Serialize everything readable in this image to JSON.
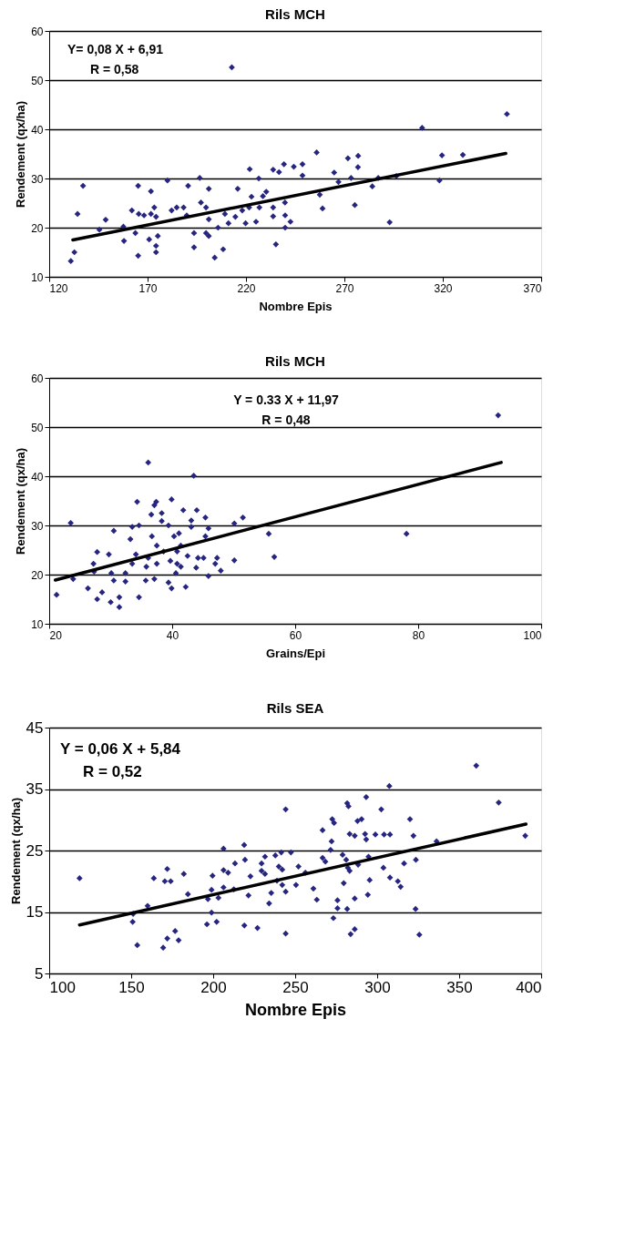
{
  "chart_data": [
    {
      "type": "scatter",
      "title": "Rils MCH",
      "xlabel": "Nombre Epis",
      "ylabel": "Rendement (qx/ha)",
      "xlim": [
        120,
        370
      ],
      "xticks": [
        120,
        170,
        220,
        270,
        320,
        370
      ],
      "ylim": [
        10,
        60
      ],
      "yticks": [
        10,
        20,
        30,
        40,
        50,
        60
      ],
      "grid": "y",
      "annotations": [
        "Y= 0,08 X + 6,91",
        "R = 0,58"
      ],
      "series": [
        {
          "color": "#262680",
          "marker": "diamond",
          "x": [
            212.8,
            352.6,
            309.5,
            255.9,
            271.8,
            277,
            276.9,
            319.6,
            330.2,
            318.3,
            296.4,
            287.2,
            284.2,
            264.8,
            267,
            273.4,
            257.5,
            258.9,
            275.3,
            293,
            248.7,
            244.3,
            239.3,
            248.7,
            233.8,
            236.8,
            221.9,
            226.5,
            215.8,
            222.8,
            228.6,
            230.3,
            239.8,
            233.8,
            233.8,
            239.9,
            242.6,
            239.9,
            235.2,
            218.1,
            214.6,
            219.8,
            225.1,
            226.8,
            221.6,
            211.1,
            209.3,
            201.1,
            196.5,
            190.6,
            180.1,
            197.1,
            199.7,
            201.1,
            205.8,
            193.6,
            199.7,
            201.1,
            193.6,
            208.4,
            204.1,
            184.8,
            188.3,
            182.2,
            189.9,
            173.4,
            174.3,
            171.7,
            165.2,
            171.7,
            162,
            165.5,
            168.2,
            157.7,
            163.8,
            170.8,
            175.2,
            174.3,
            174.3,
            165.2,
            158,
            145.5,
            148.7,
            134.4,
            137.2,
            132.8,
            131
          ],
          "values": [
            52.6,
            43.1,
            40.3,
            35.3,
            34.1,
            34.6,
            32.3,
            34.7,
            34.8,
            29.6,
            30.5,
            30.1,
            28.4,
            31.2,
            29.3,
            30.1,
            26.7,
            23.9,
            24.6,
            21.1,
            32.9,
            32.4,
            32.9,
            30.6,
            31.8,
            31.3,
            31.9,
            30,
            27.9,
            26.3,
            26.4,
            27.3,
            25.1,
            24.1,
            22.3,
            22.5,
            21.2,
            20,
            16.6,
            23.5,
            22.2,
            20.9,
            21.2,
            24.1,
            24.1,
            20.9,
            22.8,
            27.9,
            30.1,
            28.5,
            29.6,
            25.1,
            24.1,
            21.7,
            20,
            18.9,
            18.9,
            18.3,
            16,
            15.6,
            13.9,
            24.1,
            24.1,
            23.5,
            22.5,
            24.1,
            22.2,
            22.8,
            28.5,
            27.4,
            23.5,
            22.8,
            22.5,
            20.2,
            18.9,
            17.6,
            18.3,
            16.3,
            15,
            14.3,
            17.3,
            19.6,
            21.6,
            22.8,
            28.5,
            15,
            13.2
          ]
        },
        {
          "type": "line",
          "color": "#000000",
          "line_style": "solid",
          "x": [
            132,
            352
          ],
          "values": [
            17.5,
            35.1
          ]
        }
      ]
    },
    {
      "type": "scatter",
      "title": "Rils MCH",
      "xlabel": "Grains/Epi",
      "ylabel": "Rendement  (qx/ha)",
      "xlim": [
        20,
        100
      ],
      "xticks": [
        20,
        40,
        60,
        80,
        100
      ],
      "ylim": [
        10,
        60
      ],
      "yticks": [
        10,
        20,
        30,
        40,
        50,
        60
      ],
      "grid": "y",
      "annotations": [
        "Y = 0.33 X + 11,97",
        "R  = 0,48"
      ],
      "series": [
        {
          "color": "#262680",
          "marker": "diamond",
          "x": [
            93,
            36.1,
            43.5,
            34.3,
            37.4,
            37.1,
            39.9,
            41.8,
            44,
            36.6,
            38.3,
            38.3,
            45.4,
            51.5,
            50.1,
            43.1,
            43.1,
            45.9,
            39.4,
            33.5,
            34.6,
            23.5,
            30.5,
            33.2,
            36.7,
            40.3,
            41.1,
            45.4,
            55.7,
            78.1,
            56.6,
            50.1,
            47.3,
            47,
            47.9,
            45.9,
            44.2,
            45.1,
            43.9,
            42.5,
            37.5,
            38.6,
            40.8,
            41.4,
            39.7,
            40.8,
            41.4,
            40.6,
            36.1,
            35.8,
            37.5,
            34.1,
            33.5,
            32.4,
            35.7,
            37.1,
            32.4,
            30.5,
            30.1,
            27.8,
            29.7,
            27.2,
            27.3,
            23.9,
            26.3,
            28.6,
            27.8,
            30,
            31.4,
            31.4,
            34.6,
            39.4,
            39.9,
            42.2,
            21.2
          ],
          "values": [
            52.4,
            42.8,
            40.1,
            34.8,
            34.8,
            34.1,
            35.3,
            33.1,
            33.1,
            32.2,
            32.5,
            30.9,
            31.6,
            31.6,
            30.4,
            31,
            29.7,
            29.4,
            30,
            29.7,
            30,
            30.5,
            28.9,
            27.2,
            27.8,
            27.8,
            28.4,
            27.8,
            28.3,
            28.3,
            23.6,
            22.9,
            23.4,
            22.2,
            20.8,
            19.7,
            23.4,
            23.4,
            21.4,
            23.8,
            25.9,
            24.7,
            24.7,
            25.9,
            22.8,
            22.2,
            21.6,
            20.3,
            23.4,
            21.6,
            22.2,
            24.1,
            22.2,
            20.3,
            18.8,
            19.1,
            18.6,
            18.8,
            20.3,
            24.6,
            24.1,
            22.2,
            20.6,
            19.1,
            17.2,
            16.4,
            15,
            14.4,
            15.4,
            13.4,
            15.4,
            18.4,
            17.2,
            17.5,
            15.9
          ]
        },
        {
          "type": "line",
          "color": "#000000",
          "line_style": "solid",
          "x": [
            21,
            93.5
          ],
          "values": [
            18.9,
            42.8
          ]
        }
      ]
    },
    {
      "type": "scatter",
      "title": "Rils SEA",
      "xlabel": "Nombre Epis",
      "ylabel": "Rendement (qx/ha)",
      "xlim": [
        100,
        400
      ],
      "xticks": [
        100,
        150,
        200,
        250,
        300,
        350,
        400
      ],
      "ylim": [
        5,
        45
      ],
      "yticks": [
        5,
        15,
        25,
        35,
        45
      ],
      "grid": "y",
      "annotations": [
        "Y = 0,06 X + 5,84",
        "R  = 0,52"
      ],
      "series": [
        {
          "color": "#262680",
          "marker": "diamond",
          "x": [
            118.5,
            360.4,
            307.4,
            374.1,
            390.3,
            336.2,
            293.3,
            302.5,
            281.7,
            282.5,
            288,
            290.5,
            272.6,
            273.7,
            266.7,
            320,
            322.1,
            292.6,
            298.9,
            304.2,
            307.8,
            293.3,
            283.2,
            286.3,
            272.2,
            271.6,
            278.9,
            281.1,
            266.7,
            268.4,
            294.7,
            288.4,
            282.1,
            283.2,
            303.8,
            307.8,
            312.6,
            314.3,
            316.4,
            323.6,
            295.4,
            279.6,
            294.3,
            286.3,
            275.8,
            275.8,
            281.7,
            273.3,
            323.4,
            325.7,
            283.8,
            286.3,
            261.1,
            263.2,
            252,
            256.2,
            250.5,
            244.2,
            247.4,
            241.5,
            237.9,
            231.6,
            229.5,
            240,
            242.1,
            229.5,
            231.6,
            238.9,
            242.1,
            244.2,
            235.4,
            234.1,
            244.2,
            227,
            219,
            221.5,
            222.7,
            218.9,
            219.4,
            206.3,
            206.3,
            209.1,
            213.3,
            212.6,
            206.3,
            199.6,
            199,
            196.8,
            203.2,
            199,
            196.2,
            202.1,
            184.6,
            182.1,
            172,
            170.5,
            174.1,
            163.8,
            160,
            151.2,
            150.9,
            153.7,
            169.5,
            172,
            176.8,
            178.9
          ],
          "values": [
            20.5,
            38.8,
            35.5,
            32.8,
            27.4,
            26.5,
            33.7,
            31.7,
            32.7,
            32.2,
            29.8,
            30.1,
            30.1,
            29.5,
            28.3,
            30.1,
            27.4,
            27.7,
            27.6,
            27.6,
            27.6,
            26.8,
            27.7,
            27.4,
            26.5,
            25.1,
            24.3,
            23.5,
            23.8,
            23.2,
            24,
            22.7,
            22.2,
            21.7,
            22.2,
            20.6,
            20,
            19.1,
            22.9,
            23.5,
            20.2,
            19.7,
            17.8,
            17.2,
            16.9,
            15.6,
            15.5,
            14,
            15.5,
            11.3,
            11.4,
            12.2,
            18.8,
            17,
            22.4,
            21.4,
            19.4,
            31.7,
            24.7,
            24.7,
            24.2,
            24,
            22.9,
            22.4,
            21.9,
            21.7,
            21.2,
            20.1,
            19.4,
            18.3,
            18.1,
            16.4,
            11.5,
            12.4,
            12.8,
            17.7,
            20.8,
            25.9,
            23.5,
            25.3,
            21.8,
            21.4,
            22.9,
            18.7,
            19,
            20.9,
            18.6,
            17.1,
            17.3,
            14.9,
            13,
            13.4,
            17.9,
            21.2,
            22,
            20,
            20,
            20.5,
            16,
            14.7,
            13.4,
            9.6,
            9.2,
            10.7,
            11.9,
            10.4
          ]
        },
        {
          "type": "line",
          "color": "#000000",
          "line_style": "solid",
          "x": [
            118.5,
            390.7
          ],
          "values": [
            12.9,
            29.3
          ]
        }
      ]
    }
  ]
}
